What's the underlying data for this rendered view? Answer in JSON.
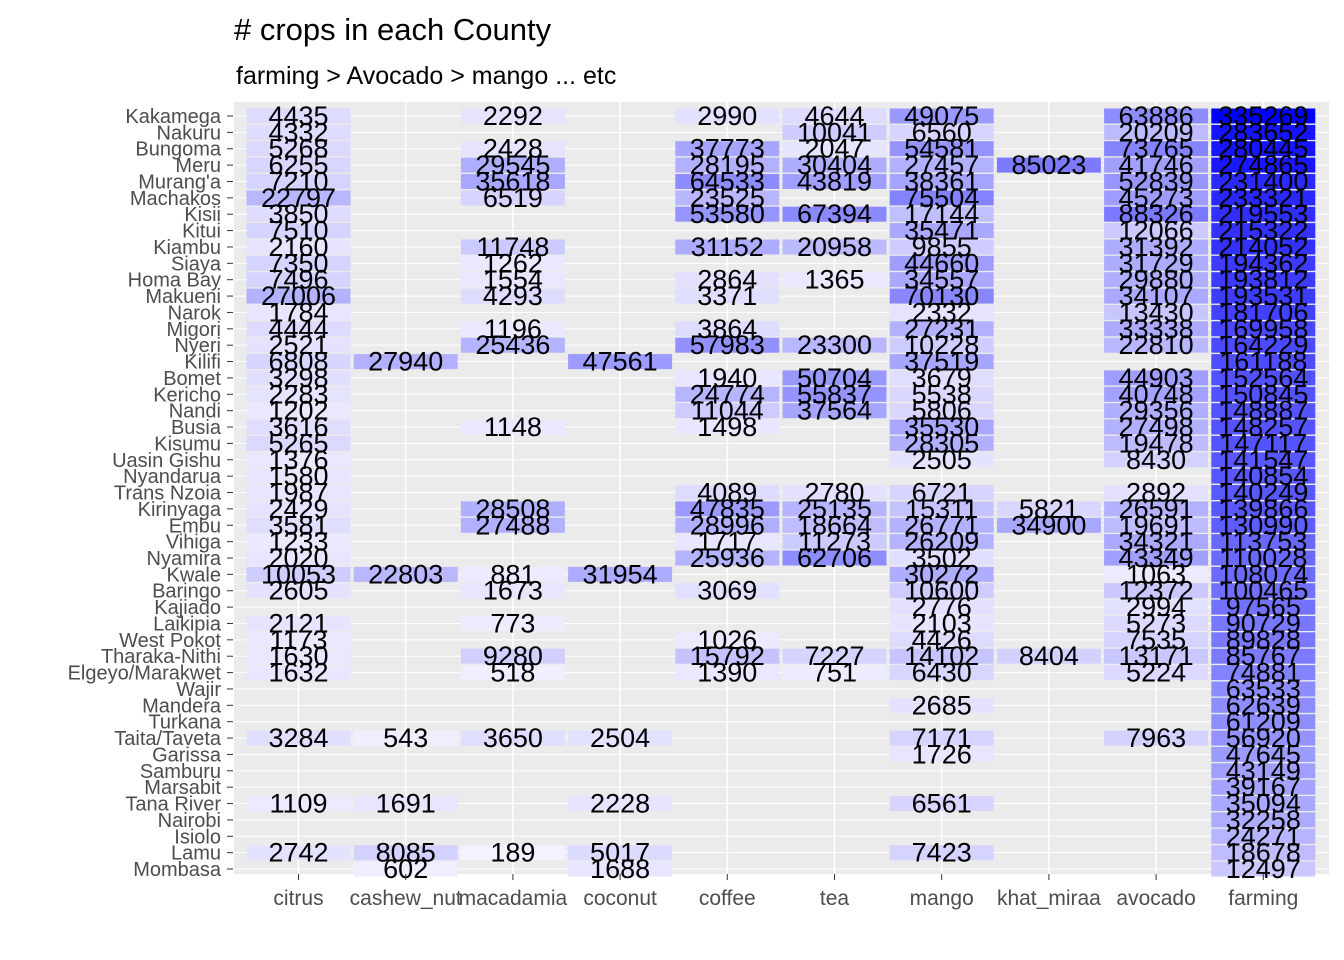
{
  "chart_data": {
    "type": "heatmap",
    "title": "# crops in each County",
    "subtitle": "farming > Avocado > mango ... etc",
    "xlabel": "",
    "ylabel": "",
    "colors": {
      "low": "#ffffff",
      "high": "#0000ff",
      "background": "#ebebeb"
    },
    "columns": [
      "citrus",
      "cashew_nut",
      "macadamia",
      "coconut",
      "coffee",
      "tea",
      "mango",
      "khat_miraa",
      "avocado",
      "farming"
    ],
    "rows": [
      {
        "county": "Kakamega",
        "values": [
          4435,
          null,
          2292,
          null,
          2990,
          4644,
          49075,
          null,
          63886,
          335269
        ]
      },
      {
        "county": "Nakuru",
        "values": [
          4332,
          null,
          null,
          null,
          null,
          10041,
          6560,
          null,
          20209,
          283652
        ]
      },
      {
        "county": "Bungoma",
        "values": [
          5268,
          null,
          2428,
          null,
          37773,
          2047,
          54581,
          null,
          73765,
          280445
        ]
      },
      {
        "county": "Meru",
        "values": [
          6255,
          null,
          29545,
          null,
          28195,
          30404,
          27457,
          85023,
          41746,
          274865
        ]
      },
      {
        "county": "Murang'a",
        "values": [
          7210,
          null,
          35618,
          null,
          64533,
          43819,
          38361,
          null,
          52839,
          231400
        ]
      },
      {
        "county": "Machakos",
        "values": [
          22797,
          null,
          6519,
          null,
          23525,
          null,
          75504,
          null,
          45273,
          233321
        ]
      },
      {
        "county": "Kisii",
        "values": [
          3850,
          null,
          null,
          null,
          53580,
          67394,
          17144,
          null,
          88326,
          219553
        ]
      },
      {
        "county": "Kitui",
        "values": [
          7510,
          null,
          null,
          null,
          null,
          null,
          35471,
          null,
          12066,
          215322
        ]
      },
      {
        "county": "Kiambu",
        "values": [
          2160,
          null,
          11748,
          null,
          31152,
          20958,
          9855,
          null,
          31392,
          214052
        ]
      },
      {
        "county": "Siaya",
        "values": [
          7350,
          null,
          1262,
          null,
          null,
          null,
          44660,
          null,
          31729,
          194362
        ]
      },
      {
        "county": "Homa Bay",
        "values": [
          7496,
          null,
          1554,
          null,
          2864,
          1365,
          34557,
          null,
          29880,
          193812
        ]
      },
      {
        "county": "Makueni",
        "values": [
          27006,
          null,
          4293,
          null,
          3371,
          null,
          70130,
          null,
          34107,
          193531
        ]
      },
      {
        "county": "Narok",
        "values": [
          1784,
          null,
          null,
          null,
          null,
          null,
          2332,
          null,
          13430,
          181706
        ]
      },
      {
        "county": "Migori",
        "values": [
          4444,
          null,
          1196,
          null,
          3864,
          null,
          27231,
          null,
          33338,
          169958
        ]
      },
      {
        "county": "Nyeri",
        "values": [
          2521,
          null,
          25436,
          null,
          57983,
          23300,
          10228,
          null,
          22810,
          164229
        ]
      },
      {
        "county": "Kilifi",
        "values": [
          6808,
          27940,
          null,
          47561,
          null,
          null,
          37519,
          null,
          null,
          161188
        ]
      },
      {
        "county": "Bomet",
        "values": [
          3298,
          null,
          null,
          null,
          1940,
          50704,
          3679,
          null,
          44903,
          152564
        ]
      },
      {
        "county": "Kericho",
        "values": [
          2283,
          null,
          null,
          null,
          24774,
          55837,
          5538,
          null,
          40748,
          150845
        ]
      },
      {
        "county": "Nandi",
        "values": [
          1202,
          null,
          null,
          null,
          11044,
          37564,
          5806,
          null,
          29356,
          148887
        ]
      },
      {
        "county": "Busia",
        "values": [
          3616,
          null,
          1148,
          null,
          1498,
          null,
          35530,
          null,
          27498,
          148257
        ]
      },
      {
        "county": "Kisumu",
        "values": [
          5265,
          null,
          null,
          null,
          null,
          null,
          28305,
          null,
          19478,
          147117
        ]
      },
      {
        "county": "Uasin Gishu",
        "values": [
          1376,
          null,
          null,
          null,
          null,
          null,
          2505,
          null,
          8430,
          141547
        ]
      },
      {
        "county": "Nyandarua",
        "values": [
          1580,
          null,
          null,
          null,
          null,
          null,
          null,
          null,
          null,
          140854
        ]
      },
      {
        "county": "Trans Nzoia",
        "values": [
          1987,
          null,
          null,
          null,
          4089,
          2780,
          6721,
          null,
          2892,
          140249
        ]
      },
      {
        "county": "Kirinyaga",
        "values": [
          2429,
          null,
          28508,
          null,
          47835,
          25135,
          15311,
          5821,
          26591,
          139866
        ]
      },
      {
        "county": "Embu",
        "values": [
          3581,
          null,
          27488,
          null,
          28996,
          18664,
          26771,
          34900,
          19691,
          130990
        ]
      },
      {
        "county": "Vihiga",
        "values": [
          1233,
          null,
          null,
          null,
          1717,
          11273,
          26209,
          null,
          34321,
          113753
        ]
      },
      {
        "county": "Nyamira",
        "values": [
          2020,
          null,
          null,
          null,
          25936,
          62706,
          3502,
          null,
          43349,
          110028
        ]
      },
      {
        "county": "Kwale",
        "values": [
          10053,
          22803,
          881,
          31954,
          null,
          null,
          30272,
          null,
          1063,
          108074
        ]
      },
      {
        "county": "Baringo",
        "values": [
          2605,
          null,
          1673,
          null,
          3069,
          null,
          10600,
          null,
          12372,
          100465
        ]
      },
      {
        "county": "Kajiado",
        "values": [
          null,
          null,
          null,
          null,
          null,
          null,
          2776,
          null,
          2994,
          97565
        ]
      },
      {
        "county": "Laikipia",
        "values": [
          2121,
          null,
          773,
          null,
          null,
          null,
          2103,
          null,
          5273,
          90729
        ]
      },
      {
        "county": "West Pokot",
        "values": [
          1173,
          null,
          null,
          null,
          1026,
          null,
          4426,
          null,
          7535,
          89828
        ]
      },
      {
        "county": "Tharaka-Nithi",
        "values": [
          1630,
          null,
          9280,
          null,
          15792,
          7227,
          14102,
          8404,
          13171,
          85767
        ]
      },
      {
        "county": "Elgeyo/Marakwet",
        "values": [
          1632,
          null,
          518,
          null,
          1390,
          751,
          6430,
          null,
          5224,
          74881
        ]
      },
      {
        "county": "Wajir",
        "values": [
          null,
          null,
          null,
          null,
          null,
          null,
          null,
          null,
          null,
          63533
        ]
      },
      {
        "county": "Mandera",
        "values": [
          null,
          null,
          null,
          null,
          null,
          null,
          2685,
          null,
          null,
          62639
        ]
      },
      {
        "county": "Turkana",
        "values": [
          null,
          null,
          null,
          null,
          null,
          null,
          null,
          null,
          null,
          61209
        ]
      },
      {
        "county": "Taita/Taveta",
        "values": [
          3284,
          543,
          3650,
          2504,
          null,
          null,
          7171,
          null,
          7963,
          56920
        ]
      },
      {
        "county": "Garissa",
        "values": [
          null,
          null,
          null,
          null,
          null,
          null,
          1726,
          null,
          null,
          47645
        ]
      },
      {
        "county": "Samburu",
        "values": [
          null,
          null,
          null,
          null,
          null,
          null,
          null,
          null,
          null,
          43149
        ]
      },
      {
        "county": "Marsabit",
        "values": [
          null,
          null,
          null,
          null,
          null,
          null,
          null,
          null,
          null,
          39167
        ]
      },
      {
        "county": "Tana River",
        "values": [
          1109,
          1691,
          null,
          2228,
          null,
          null,
          6561,
          null,
          null,
          35094
        ]
      },
      {
        "county": "Nairobi",
        "values": [
          null,
          null,
          null,
          null,
          null,
          null,
          null,
          null,
          null,
          32258
        ]
      },
      {
        "county": "Isiolo",
        "values": [
          null,
          null,
          null,
          null,
          null,
          null,
          null,
          null,
          null,
          24271
        ]
      },
      {
        "county": "Lamu",
        "values": [
          2742,
          8085,
          189,
          5017,
          null,
          null,
          7423,
          null,
          null,
          18678
        ]
      },
      {
        "county": "Mombasa",
        "values": [
          null,
          602,
          null,
          1688,
          null,
          null,
          null,
          null,
          null,
          12497
        ]
      }
    ]
  }
}
